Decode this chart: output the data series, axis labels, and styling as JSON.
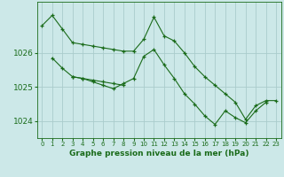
{
  "bg_color": "#cce8e8",
  "grid_color": "#aacccc",
  "line_color": "#1a6b1a",
  "marker_color": "#1a6b1a",
  "xlabel": "Graphe pression niveau de la mer (hPa)",
  "ylim": [
    1023.5,
    1027.5
  ],
  "yticks": [
    1024,
    1025,
    1026
  ],
  "xlim": [
    -0.5,
    23.5
  ],
  "xticks": [
    0,
    1,
    2,
    3,
    4,
    5,
    6,
    7,
    8,
    9,
    10,
    11,
    12,
    13,
    14,
    15,
    16,
    17,
    18,
    19,
    20,
    21,
    22,
    23
  ],
  "series1_x": [
    0,
    1,
    2,
    3,
    4,
    5,
    6,
    7,
    8,
    9,
    10,
    11,
    12,
    13,
    14,
    15,
    16,
    17,
    18,
    19,
    20,
    21,
    22,
    23
  ],
  "series1_y": [
    1026.8,
    1027.1,
    1026.7,
    1026.3,
    1026.25,
    1026.2,
    1026.15,
    1026.1,
    1026.05,
    1026.05,
    1026.4,
    1027.05,
    1026.5,
    1026.35,
    1026.0,
    1025.6,
    1025.3,
    1025.05,
    1024.8,
    1024.55,
    1024.05,
    1024.45,
    1024.6,
    1024.6
  ],
  "series2_x": [
    1,
    2,
    3,
    4,
    5,
    6,
    7,
    8
  ],
  "series2_y": [
    1025.85,
    1025.55,
    1025.3,
    1025.25,
    1025.2,
    1025.15,
    1025.1,
    1025.05
  ],
  "series3_x": [
    3,
    4,
    5,
    6,
    7,
    8,
    9,
    10,
    11,
    12,
    13,
    14,
    15,
    16,
    17,
    18,
    19,
    20,
    21,
    22
  ],
  "series3_y": [
    1025.3,
    1025.25,
    1025.15,
    1025.05,
    1024.95,
    1025.1,
    1025.25,
    1025.9,
    1026.1,
    1025.65,
    1025.25,
    1024.8,
    1024.5,
    1024.15,
    1023.9,
    1024.3,
    1024.1,
    1023.95,
    1024.3,
    1024.55
  ]
}
